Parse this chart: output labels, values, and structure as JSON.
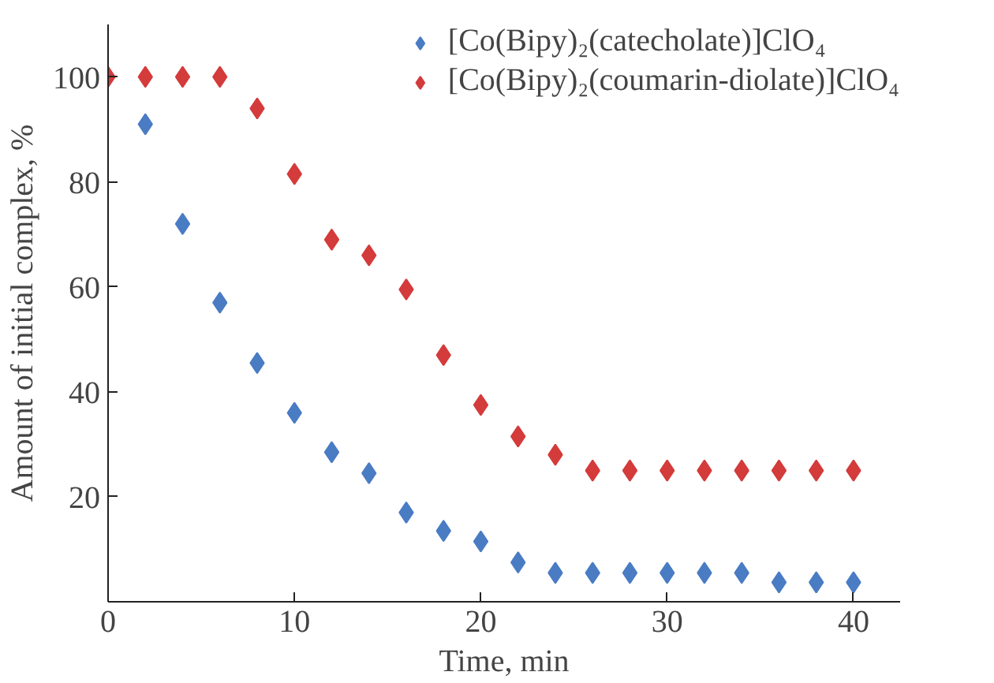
{
  "chart_data": {
    "type": "scatter",
    "xlabel": "Time, min",
    "ylabel": "Amount of initial complex, %",
    "xlim": [
      0,
      42.5
    ],
    "ylim": [
      0,
      110
    ],
    "xticks": [
      0,
      10,
      20,
      30,
      40
    ],
    "yticks": [
      20,
      40,
      60,
      80,
      100
    ],
    "marker": "diamond",
    "legend": "top right",
    "grid": false,
    "series": [
      {
        "name": "[Co(Bipy)₂(catecholate)]ClO₄",
        "color": "#4a7cc4",
        "x": [
          2,
          4,
          6,
          8,
          10,
          12,
          14,
          16,
          18,
          20,
          22,
          24,
          26,
          28,
          30,
          32,
          34,
          36,
          38,
          40
        ],
        "values": [
          91,
          72,
          57,
          45.5,
          36,
          28.5,
          24.5,
          17,
          13.5,
          11.5,
          7.5,
          5.5,
          5.5,
          5.5,
          5.5,
          5.5,
          5.5,
          3.7,
          3.7,
          3.7
        ]
      },
      {
        "name": "[Co(Bipy)₂(coumarin-diolate)]ClO₄",
        "color": "#d43b3b",
        "x": [
          0,
          2,
          4,
          6,
          8,
          10,
          12,
          14,
          16,
          18,
          20,
          22,
          24,
          26,
          28,
          30,
          32,
          34,
          36,
          38,
          40
        ],
        "values": [
          100,
          100,
          100,
          100,
          94,
          81.5,
          69,
          66,
          59.5,
          47,
          37.5,
          31.5,
          28,
          25,
          25,
          25,
          25,
          25,
          25,
          25,
          25
        ]
      }
    ]
  }
}
